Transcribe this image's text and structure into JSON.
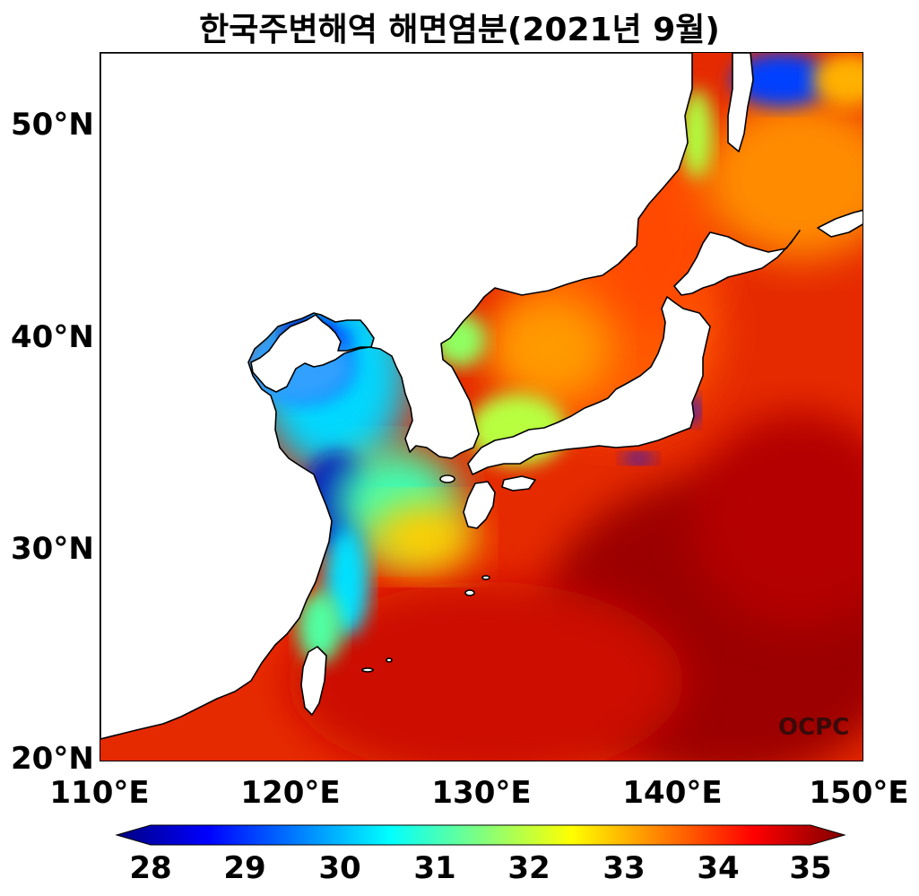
{
  "title": "한국주변해역 해면염분(2021년 9월)",
  "map": {
    "extent": {
      "lon": [
        110,
        150
      ],
      "lat": [
        20,
        53.5
      ]
    },
    "lat_ticks": [
      {
        "value": 20,
        "label": "20°N"
      },
      {
        "value": 30,
        "label": "30°N"
      },
      {
        "value": 40,
        "label": "40°N"
      },
      {
        "value": 50,
        "label": "50°N"
      }
    ],
    "lon_ticks": [
      {
        "value": 110,
        "label": "110°E"
      },
      {
        "value": 120,
        "label": "120°E"
      },
      {
        "value": 130,
        "label": "130°E"
      },
      {
        "value": 140,
        "label": "140°E"
      },
      {
        "value": 150,
        "label": "150°E"
      }
    ],
    "watermark": "OCPC"
  },
  "colorbar": {
    "range": [
      28,
      35
    ],
    "ticks": [
      "28",
      "29",
      "30",
      "31",
      "32",
      "33",
      "34",
      "35"
    ],
    "colormap": "jet",
    "colors": [
      "#00007f",
      "#0000ff",
      "#007fff",
      "#00ffff",
      "#7fff7f",
      "#ffff00",
      "#ff7f00",
      "#ff0000",
      "#7f0000"
    ]
  }
}
